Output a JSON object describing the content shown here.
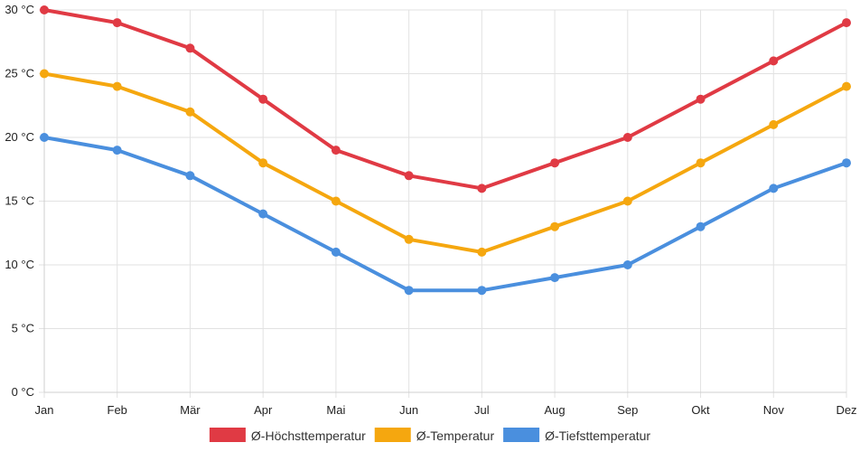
{
  "chart_data": {
    "type": "line",
    "title": "",
    "xlabel": "",
    "ylabel": "",
    "categories": [
      "Jan",
      "Feb",
      "Mär",
      "Apr",
      "Mai",
      "Jun",
      "Jul",
      "Aug",
      "Sep",
      "Okt",
      "Nov",
      "Dez"
    ],
    "ylim": [
      0,
      30
    ],
    "y_ticks": [
      0,
      5,
      10,
      15,
      20,
      25,
      30
    ],
    "y_unit": "°C",
    "grid": true,
    "legend_position": "bottom-center",
    "series": [
      {
        "name": "Ø-Höchsttemperatur",
        "color": "#e03a44",
        "values": [
          30,
          29,
          27,
          23,
          19,
          17,
          16,
          18,
          20,
          23,
          26,
          29
        ]
      },
      {
        "name": "Ø-Temperatur",
        "color": "#f5a70f",
        "values": [
          25,
          24,
          22,
          18,
          15,
          12,
          11,
          13,
          15,
          18,
          21,
          24
        ]
      },
      {
        "name": "Ø-Tiefsttemperatur",
        "color": "#4a8fde",
        "values": [
          20,
          19,
          17,
          14,
          11,
          8,
          8,
          9,
          10,
          13,
          16,
          18
        ]
      }
    ]
  }
}
